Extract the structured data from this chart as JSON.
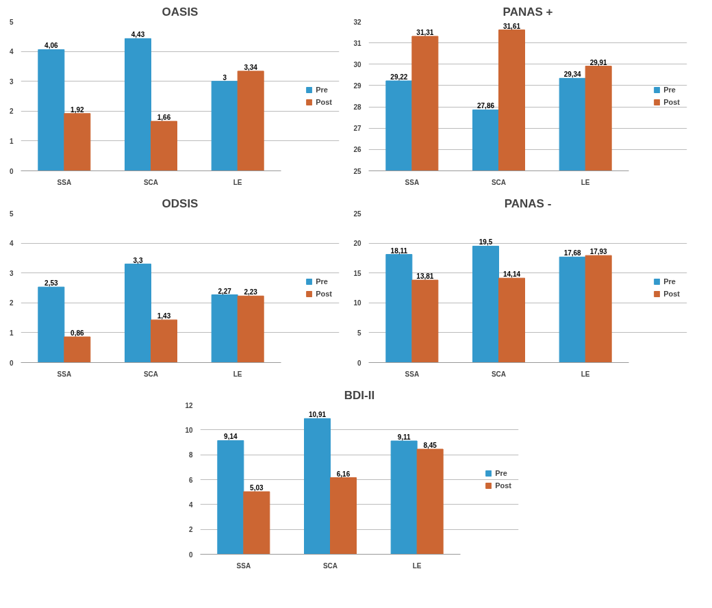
{
  "chart_data": [
    {
      "type": "bar",
      "title": "OASIS",
      "categories": [
        "SSA",
        "SCA",
        "LE"
      ],
      "ylim": [
        0,
        5
      ],
      "yticks": [
        0,
        1,
        2,
        3,
        4,
        5
      ],
      "grid": "y",
      "legend": "right",
      "series": [
        {
          "name": "Pre",
          "color": "#3399cc",
          "values": [
            4.06,
            4.43,
            3
          ],
          "value_labels": [
            "4,06",
            "4,43",
            "3"
          ]
        },
        {
          "name": "Post",
          "color": "#cc6633",
          "values": [
            1.92,
            1.66,
            3.34
          ],
          "value_labels": [
            "1,92",
            "1,66",
            "3,34"
          ]
        }
      ]
    },
    {
      "type": "bar",
      "title": "PANAS +",
      "categories": [
        "SSA",
        "SCA",
        "LE"
      ],
      "ylim": [
        25,
        32
      ],
      "yticks": [
        25,
        26,
        27,
        28,
        29,
        30,
        31,
        32
      ],
      "grid": "y",
      "legend": "right",
      "series": [
        {
          "name": "Pre",
          "color": "#3399cc",
          "values": [
            29.22,
            27.86,
            29.34
          ],
          "value_labels": [
            "29,22",
            "27,86",
            "29,34"
          ]
        },
        {
          "name": "Post",
          "color": "#cc6633",
          "values": [
            31.31,
            31.61,
            29.91
          ],
          "value_labels": [
            "31,31",
            "31,61",
            "29,91"
          ]
        }
      ]
    },
    {
      "type": "bar",
      "title": "ODSIS",
      "categories": [
        "SSA",
        "SCA",
        "LE"
      ],
      "ylim": [
        0,
        5
      ],
      "yticks": [
        0,
        1,
        2,
        3,
        4,
        5
      ],
      "grid": "y",
      "legend": "right",
      "series": [
        {
          "name": "Pre",
          "color": "#3399cc",
          "values": [
            2.53,
            3.3,
            2.27
          ],
          "value_labels": [
            "2,53",
            "3,3",
            "2,27"
          ]
        },
        {
          "name": "Post",
          "color": "#cc6633",
          "values": [
            0.86,
            1.43,
            2.23
          ],
          "value_labels": [
            "0,86",
            "1,43",
            "2,23"
          ]
        }
      ]
    },
    {
      "type": "bar",
      "title": "PANAS -",
      "categories": [
        "SSA",
        "SCA",
        "LE"
      ],
      "ylim": [
        0,
        25
      ],
      "yticks": [
        0,
        5,
        10,
        15,
        20,
        25
      ],
      "grid": "y",
      "legend": "right",
      "series": [
        {
          "name": "Pre",
          "color": "#3399cc",
          "values": [
            18.11,
            19.5,
            17.68
          ],
          "value_labels": [
            "18,11",
            "19,5",
            "17,68"
          ]
        },
        {
          "name": "Post",
          "color": "#cc6633",
          "values": [
            13.81,
            14.14,
            17.93
          ],
          "value_labels": [
            "13,81",
            "14,14",
            "17,93"
          ]
        }
      ]
    },
    {
      "type": "bar",
      "title": "BDI-II",
      "categories": [
        "SSA",
        "SCA",
        "LE"
      ],
      "ylim": [
        0,
        12
      ],
      "yticks": [
        0,
        2,
        4,
        6,
        8,
        10,
        12
      ],
      "grid": "y",
      "legend": "right",
      "series": [
        {
          "name": "Pre",
          "color": "#3399cc",
          "values": [
            9.14,
            10.91,
            9.11
          ],
          "value_labels": [
            "9,14",
            "10,91",
            "9,11"
          ]
        },
        {
          "name": "Post",
          "color": "#cc6633",
          "values": [
            5.03,
            6.16,
            8.45
          ],
          "value_labels": [
            "5,03",
            "6,16",
            "8,45"
          ]
        }
      ]
    }
  ]
}
